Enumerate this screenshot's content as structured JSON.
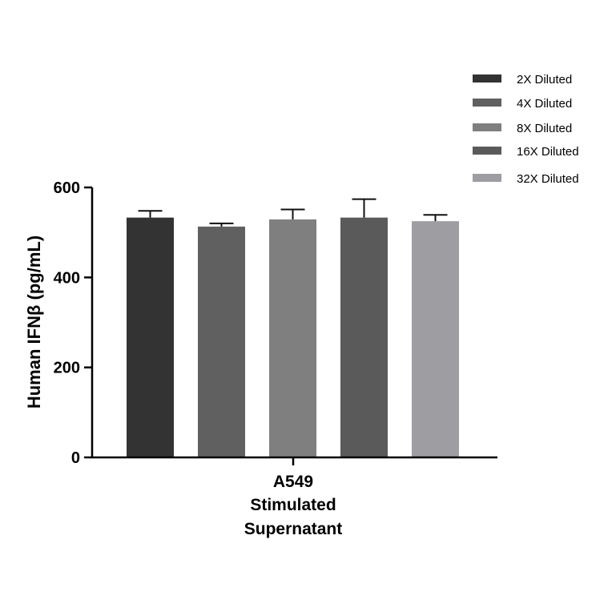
{
  "chart_data": {
    "type": "bar",
    "title": "",
    "ylabel": "Human IFNβ (pg/mL)",
    "xlabel_lines": [
      "A549",
      "Stimulated",
      "Supernatant"
    ],
    "ylim": [
      0,
      600
    ],
    "yticks": [
      0,
      200,
      400,
      600
    ],
    "legend_position": "top-right",
    "series": [
      {
        "name": "2X Diluted",
        "value": 533,
        "error": 15,
        "color": "#333333"
      },
      {
        "name": "4X Diluted",
        "value": 513,
        "error": 7,
        "color": "#606060"
      },
      {
        "name": "8X Diluted",
        "value": 529,
        "error": 22,
        "color": "#7f7f7f"
      },
      {
        "name": "16X Diluted",
        "value": 533,
        "error": 41,
        "color": "#5a5a5a"
      },
      {
        "name": "32X Diluted",
        "value": 525,
        "error": 14,
        "color": "#9e9ea2"
      }
    ]
  }
}
